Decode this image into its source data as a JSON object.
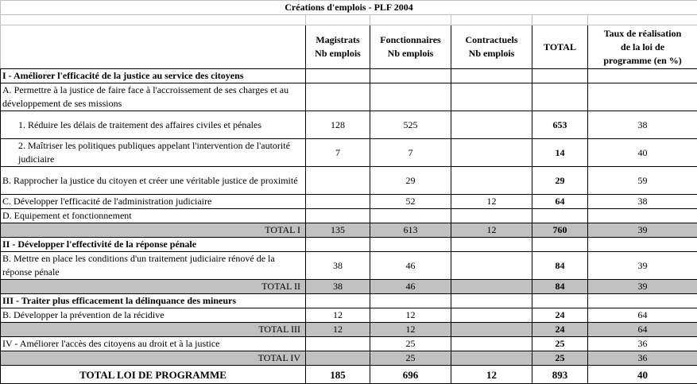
{
  "title": "Créations d'emplois - PLF 2004",
  "columns": [
    "Magistrats Nb emplois",
    "Fonctionnaires Nb emplois",
    "Contractuels Nb emplois",
    "TOTAL",
    "Taux de réalisation de la loi de programme (en %)"
  ],
  "columns_lines": [
    [
      "Magistrats",
      "Nb emplois"
    ],
    [
      "Fonctionnaires",
      "Nb emplois"
    ],
    [
      "Contractuels",
      "Nb emplois"
    ],
    [
      "TOTAL"
    ],
    [
      "Taux de réalisation",
      "de la loi de",
      "programme (en %)"
    ]
  ],
  "rows": [
    {
      "type": "section",
      "label": "I - Améliorer l'efficacité de la justice au service des citoyens",
      "values": [
        "",
        "",
        "",
        "",
        ""
      ]
    },
    {
      "type": "item2",
      "label": "A. Permettre à la justice de faire face à l'accroissement de ses charges et au développement de ses missions",
      "values": [
        "",
        "",
        "",
        "",
        ""
      ]
    },
    {
      "type": "sub2",
      "label": "1. Réduire les délais de traitement des affaires civiles et pénales",
      "values": [
        "128",
        "525",
        "",
        "653",
        "38"
      ]
    },
    {
      "type": "sub2",
      "label": "2. Maîtriser les politiques publiques appelant l'intervention de l'autorité judiciaire",
      "values": [
        "7",
        "7",
        "",
        "14",
        "40"
      ]
    },
    {
      "type": "item2",
      "label": "B. Rapprocher la justice du citoyen et créer une véritable justice de proximité",
      "values": [
        "",
        "29",
        "",
        "29",
        "59"
      ]
    },
    {
      "type": "item",
      "label": "C. Développer l'efficacité de l'administration judiciaire",
      "values": [
        "",
        "52",
        "12",
        "64",
        "38"
      ]
    },
    {
      "type": "item",
      "label": "D. Equipement et fonctionnement",
      "values": [
        "",
        "",
        "",
        "",
        ""
      ]
    },
    {
      "type": "total",
      "label": "TOTAL I",
      "values": [
        "135",
        "613",
        "12",
        "760",
        "39"
      ]
    },
    {
      "type": "section",
      "label": "II - Développer l'effectivité de la réponse pénale",
      "values": [
        "",
        "",
        "",
        "",
        ""
      ]
    },
    {
      "type": "item2",
      "label": "B. Mettre en place les conditions d'un traitement judiciaire rénové de la réponse pénale",
      "values": [
        "38",
        "46",
        "",
        "84",
        "39"
      ]
    },
    {
      "type": "total",
      "label": "TOTAL II",
      "values": [
        "38",
        "46",
        "",
        "84",
        "39"
      ]
    },
    {
      "type": "section",
      "label": "III - Traiter plus efficacement la délinquance des mineurs",
      "values": [
        "",
        "",
        "",
        "",
        ""
      ]
    },
    {
      "type": "item",
      "label": "B. Développer la prévention de la récidive",
      "values": [
        "12",
        "12",
        "",
        "24",
        "64"
      ]
    },
    {
      "type": "total",
      "label": "TOTAL III",
      "values": [
        "12",
        "12",
        "",
        "24",
        "64"
      ]
    },
    {
      "type": "item",
      "label": "IV - Améliorer l'accès des citoyens au droit et à la justice",
      "values": [
        "",
        "25",
        "",
        "25",
        "36"
      ]
    },
    {
      "type": "total",
      "label": "TOTAL IV",
      "values": [
        "",
        "25",
        "",
        "25",
        "36"
      ]
    },
    {
      "type": "grand",
      "label": "TOTAL LOI DE PROGRAMME",
      "values": [
        "185",
        "696",
        "12",
        "893",
        "40"
      ]
    }
  ],
  "colors": {
    "total_row_bg": "#c0c0c0",
    "grid": "#000000"
  }
}
